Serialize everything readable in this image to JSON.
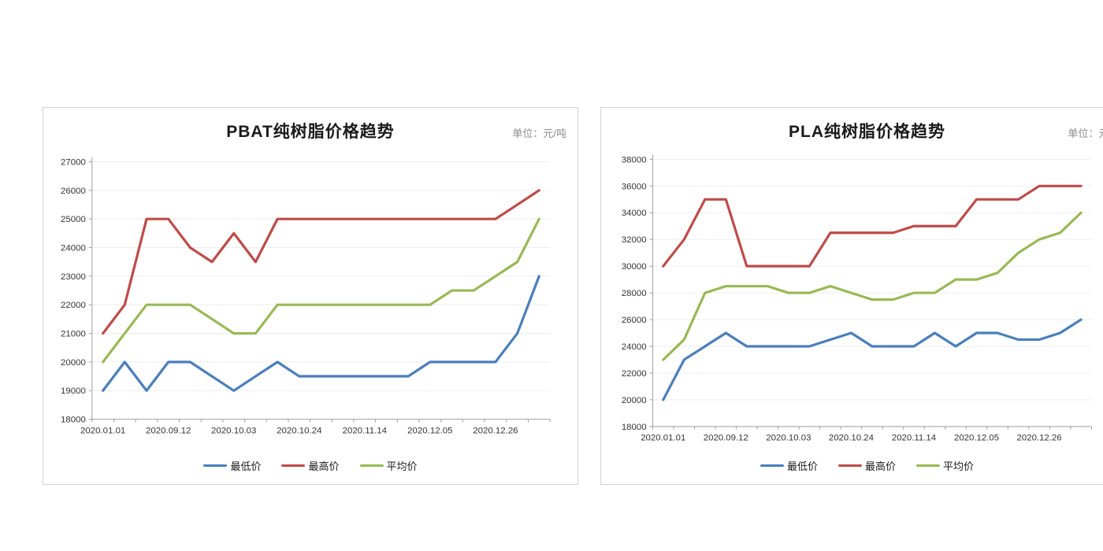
{
  "unit_note": "单位：元/吨",
  "legend_labels": {
    "min": "最低价",
    "max": "最高价",
    "avg": "平均价"
  },
  "colors": {
    "min": "#4A7EBB",
    "max": "#BE4B48",
    "avg": "#98B954",
    "grid": "#ededed",
    "axis": "#9e9e9e"
  },
  "chart_data": [
    {
      "type": "line",
      "title": "PBAT纯树脂价格趋势",
      "unit_label": "单位：元/吨",
      "n_points": 21,
      "x_tick_labels": [
        "2020.01.01",
        "2020.09.12",
        "2020.10.03",
        "2020.10.24",
        "2020.11.14",
        "2020.12.05",
        "2020.12.26"
      ],
      "x_label_every": 3,
      "ylim": [
        18000,
        27000
      ],
      "y_step": 1000,
      "grid": true,
      "legend_position": "bottom",
      "series": [
        {
          "name": "最低价",
          "color": "#4A7EBB",
          "values": [
            19000,
            20000,
            19000,
            20000,
            20000,
            19500,
            19000,
            19500,
            20000,
            19500,
            19500,
            19500,
            19500,
            19500,
            19500,
            20000,
            20000,
            20000,
            20000,
            21000,
            23000
          ]
        },
        {
          "name": "最高价",
          "color": "#BE4B48",
          "values": [
            21000,
            22000,
            25000,
            25000,
            24000,
            23500,
            24500,
            23500,
            25000,
            25000,
            25000,
            25000,
            25000,
            25000,
            25000,
            25000,
            25000,
            25000,
            25000,
            25500,
            26000
          ]
        },
        {
          "name": "平均价",
          "color": "#98B954",
          "values": [
            20000,
            21000,
            22000,
            22000,
            22000,
            21500,
            21000,
            21000,
            22000,
            22000,
            22000,
            22000,
            22000,
            22000,
            22000,
            22000,
            22500,
            22500,
            23000,
            23500,
            25000
          ]
        }
      ]
    },
    {
      "type": "line",
      "title": "PLA纯树脂价格趋势",
      "unit_label": "单位：元/吨",
      "n_points": 21,
      "x_tick_labels": [
        "2020.01.01",
        "2020.09.12",
        "2020.10.03",
        "2020.10.24",
        "2020.11.14",
        "2020.12.05",
        "2020.12.26"
      ],
      "x_label_every": 3,
      "ylim": [
        18000,
        38000
      ],
      "y_step": 2000,
      "grid": true,
      "legend_position": "bottom",
      "series": [
        {
          "name": "最低价",
          "color": "#4A7EBB",
          "values": [
            20000,
            23000,
            24000,
            25000,
            24000,
            24000,
            24000,
            24000,
            24500,
            25000,
            24000,
            24000,
            24000,
            25000,
            24000,
            25000,
            25000,
            24500,
            24500,
            25000,
            26000
          ]
        },
        {
          "name": "最高价",
          "color": "#BE4B48",
          "values": [
            30000,
            32000,
            35000,
            35000,
            30000,
            30000,
            30000,
            30000,
            32500,
            32500,
            32500,
            32500,
            33000,
            33000,
            33000,
            35000,
            35000,
            35000,
            36000,
            36000,
            36000
          ]
        },
        {
          "name": "平均价",
          "color": "#98B954",
          "values": [
            23000,
            24500,
            28000,
            28500,
            28500,
            28500,
            28000,
            28000,
            28500,
            28000,
            27500,
            27500,
            28000,
            28000,
            29000,
            29000,
            29500,
            31000,
            32000,
            32500,
            34000
          ]
        }
      ]
    }
  ]
}
